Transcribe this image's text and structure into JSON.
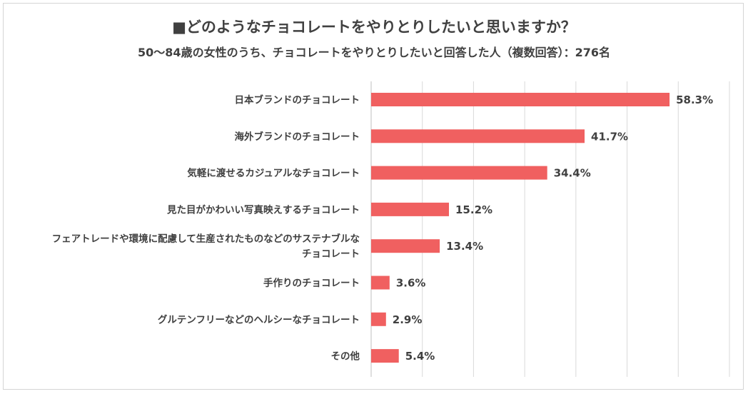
{
  "chart_data": {
    "type": "bar",
    "orientation": "horizontal",
    "title": "■どのようなチョコレートをやりとりしたいと思いますか？",
    "subtitle": "50～84歳の女性のうち、チョコレートをやりとりしたいと回答した人（複数回答）：276名",
    "categories": [
      [
        "日本ブランドのチョコレート"
      ],
      [
        "海外ブランドのチョコレート"
      ],
      [
        "気軽に渡せるカジュアルなチョコレート"
      ],
      [
        "見た目がかわいい写真映えするチョコレート"
      ],
      [
        "フェアトレードや環境に配慮して生産されたものなどのサステナブルな",
        "チョコレート"
      ],
      [
        "手作りのチョコレート"
      ],
      [
        "グルテンフリーなどのヘルシーなチョコレート"
      ],
      [
        "その他"
      ]
    ],
    "values": [
      58.3,
      41.7,
      34.4,
      15.2,
      13.4,
      3.6,
      2.9,
      5.4
    ],
    "value_labels": [
      "58.3%",
      "41.7%",
      "34.4%",
      "15.2%",
      "13.4%",
      "3.6%",
      "2.9%",
      "5.4%"
    ],
    "xlim": [
      0,
      70
    ],
    "grid": true,
    "legend": "none",
    "colors": {
      "bar": "#f06060",
      "grid": "#d9d9d9",
      "text": "#404040"
    }
  }
}
